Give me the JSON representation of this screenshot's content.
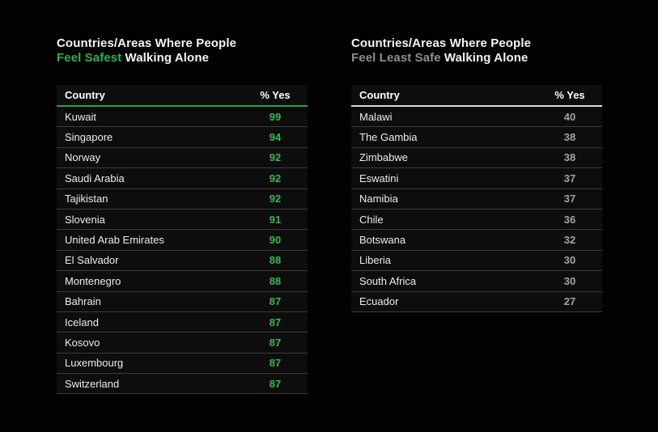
{
  "page": {
    "background": "#020202"
  },
  "chart_data": [
    {
      "type": "table",
      "title": "Countries/Areas Where People Feel Safest Walking Alone",
      "title_line1": "Countries/Areas Where People",
      "title_highlight": "Feel Safest",
      "title_suffix": "Walking Alone",
      "accent_color": "#2fae4f",
      "value_color": "#35b857",
      "rule_color": "#2f9e49",
      "columns": [
        "Country",
        "% Yes"
      ],
      "rows": [
        [
          "Kuwait",
          99
        ],
        [
          "Singapore",
          94
        ],
        [
          "Norway",
          92
        ],
        [
          "Saudi Arabia",
          92
        ],
        [
          "Tajikistan",
          92
        ],
        [
          "Slovenia",
          91
        ],
        [
          "United Arab Emirates",
          90
        ],
        [
          "El Salvador",
          88
        ],
        [
          "Montenegro",
          88
        ],
        [
          "Bahrain",
          87
        ],
        [
          "Iceland",
          87
        ],
        [
          "Kosovo",
          87
        ],
        [
          "Luxembourg",
          87
        ],
        [
          "Switzerland",
          87
        ]
      ]
    },
    {
      "type": "table",
      "title": "Countries/Areas Where People Feel Least Safe Walking Alone",
      "title_line1": "Countries/Areas Where People",
      "title_highlight": "Feel Least Safe",
      "title_suffix": "Walking Alone",
      "accent_color": "#8d8d8d",
      "value_color": "#a3a3a3",
      "rule_color": "#d6d6d6",
      "columns": [
        "Country",
        "% Yes"
      ],
      "rows": [
        [
          "Malawi",
          40
        ],
        [
          "The Gambia",
          38
        ],
        [
          "Zimbabwe",
          38
        ],
        [
          "Eswatini",
          37
        ],
        [
          "Namibia",
          37
        ],
        [
          "Chile",
          36
        ],
        [
          "Botswana",
          32
        ],
        [
          "Liberia",
          30
        ],
        [
          "South Africa",
          30
        ],
        [
          "Ecuador",
          27
        ]
      ]
    }
  ]
}
